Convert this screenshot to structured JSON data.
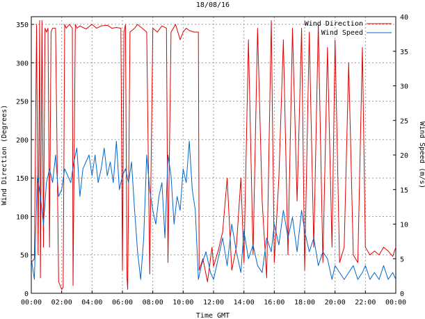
{
  "chart_data": {
    "type": "line",
    "title": "18/08/16",
    "xlabel": "Time GMT",
    "ylabel_left": "Wind Direction (Degrees)",
    "ylabel_right": "Wind Speed (m/s)",
    "xlim_hours": [
      0,
      24
    ],
    "ylim_left": [
      0,
      360
    ],
    "ylim_right": [
      0,
      40
    ],
    "grid": true,
    "legend_position": "top-right",
    "x_ticks": [
      "00:00",
      "02:00",
      "04:00",
      "06:00",
      "08:00",
      "10:00",
      "12:00",
      "14:00",
      "16:00",
      "18:00",
      "20:00",
      "22:00",
      "00:00"
    ],
    "y_ticks_left": [
      0,
      50,
      100,
      150,
      200,
      250,
      300,
      350
    ],
    "y_ticks_right": [
      0,
      5,
      10,
      15,
      20,
      25,
      30,
      35,
      40
    ],
    "series": [
      {
        "name": "Wind Direction",
        "axis": "left",
        "color": "#dd0000",
        "x": [
          0.0,
          0.2,
          0.35,
          0.45,
          0.55,
          0.6,
          0.7,
          0.8,
          0.9,
          1.0,
          1.1,
          1.2,
          1.3,
          1.4,
          1.6,
          1.8,
          2.0,
          2.1,
          2.2,
          2.3,
          2.5,
          2.7,
          2.75,
          2.9,
          3.0,
          3.2,
          3.4,
          3.6,
          3.8,
          4.0,
          4.3,
          4.6,
          5.0,
          5.3,
          5.6,
          5.9,
          6.0,
          6.1,
          6.2,
          6.3,
          6.35,
          6.5,
          6.8,
          7.0,
          7.3,
          7.6,
          7.8,
          8.0,
          8.3,
          8.6,
          8.9,
          9.0,
          9.2,
          9.5,
          9.8,
          10.0,
          10.2,
          10.4,
          10.7,
          11.0,
          11.05,
          11.3,
          11.6,
          11.9,
          12.0,
          12.3,
          12.6,
          12.9,
          13.2,
          13.5,
          13.8,
          14.0,
          14.3,
          14.6,
          14.9,
          15.2,
          15.5,
          15.8,
          16.0,
          16.3,
          16.6,
          16.9,
          17.2,
          17.5,
          17.8,
          18.0,
          18.3,
          18.6,
          18.9,
          19.2,
          19.5,
          19.8,
          20.0,
          20.3,
          20.6,
          20.9,
          21.2,
          21.5,
          21.8,
          22.0,
          22.3,
          22.6,
          22.9,
          23.2,
          23.5,
          23.8,
          24.0
        ],
        "values": [
          40,
          45,
          350,
          50,
          355,
          20,
          355,
          60,
          345,
          340,
          345,
          60,
          340,
          345,
          345,
          15,
          5,
          8,
          350,
          345,
          350,
          345,
          10,
          350,
          345,
          348,
          346,
          344,
          347,
          350,
          345,
          348,
          349,
          345,
          346,
          345,
          30,
          340,
          350,
          20,
          5,
          340,
          345,
          350,
          345,
          340,
          25,
          345,
          340,
          348,
          345,
          40,
          340,
          350,
          330,
          340,
          345,
          342,
          340,
          340,
          30,
          45,
          15,
          60,
          35,
          55,
          80,
          150,
          30,
          60,
          150,
          40,
          330,
          50,
          345,
          120,
          20,
          355,
          40,
          150,
          330,
          50,
          345,
          120,
          345,
          30,
          340,
          60,
          350,
          40,
          320,
          60,
          330,
          40,
          60,
          300,
          50,
          40,
          320,
          60,
          50,
          55,
          50,
          60,
          55,
          48,
          60
        ]
      },
      {
        "name": "Wind Speed",
        "axis": "right",
        "color": "#0066cc",
        "x": [
          0.0,
          0.2,
          0.4,
          0.6,
          0.8,
          1.0,
          1.2,
          1.4,
          1.6,
          1.8,
          2.0,
          2.2,
          2.4,
          2.6,
          2.8,
          3.0,
          3.2,
          3.4,
          3.6,
          3.8,
          4.0,
          4.2,
          4.4,
          4.6,
          4.8,
          5.0,
          5.2,
          5.4,
          5.6,
          5.8,
          6.0,
          6.2,
          6.4,
          6.6,
          6.8,
          7.0,
          7.2,
          7.4,
          7.6,
          7.8,
          8.0,
          8.2,
          8.4,
          8.6,
          8.8,
          9.0,
          9.2,
          9.4,
          9.6,
          9.8,
          10.0,
          10.2,
          10.4,
          10.6,
          10.8,
          11.0,
          11.2,
          11.5,
          11.8,
          12.0,
          12.3,
          12.6,
          12.9,
          13.2,
          13.5,
          13.8,
          14.0,
          14.3,
          14.6,
          14.9,
          15.2,
          15.5,
          15.8,
          16.0,
          16.3,
          16.6,
          16.9,
          17.2,
          17.5,
          17.8,
          18.0,
          18.3,
          18.6,
          18.9,
          19.2,
          19.5,
          19.8,
          20.0,
          20.3,
          20.6,
          20.9,
          21.2,
          21.5,
          21.8,
          22.0,
          22.3,
          22.6,
          22.9,
          23.2,
          23.5,
          23.8,
          24.0
        ],
        "values": [
          5,
          2,
          17,
          14,
          10,
          16,
          18,
          16,
          20,
          14,
          15,
          18,
          17,
          16,
          19,
          21,
          14,
          18,
          19,
          20,
          17,
          20,
          16,
          18,
          21,
          17,
          19,
          16,
          22,
          15,
          17,
          18,
          16,
          19,
          12,
          6,
          2,
          8,
          20,
          15,
          12,
          10,
          14,
          16,
          8,
          20,
          17,
          10,
          14,
          12,
          18,
          16,
          22,
          15,
          12,
          2,
          4,
          6,
          3,
          2,
          5,
          8,
          4,
          10,
          6,
          3,
          9,
          5,
          7,
          4,
          3,
          8,
          6,
          10,
          7,
          12,
          8,
          11,
          6,
          12,
          9,
          6,
          8,
          4,
          6,
          5,
          2,
          4,
          3,
          2,
          3,
          4,
          2,
          3,
          4,
          2,
          3,
          2,
          4,
          2,
          3,
          2
        ]
      }
    ]
  }
}
